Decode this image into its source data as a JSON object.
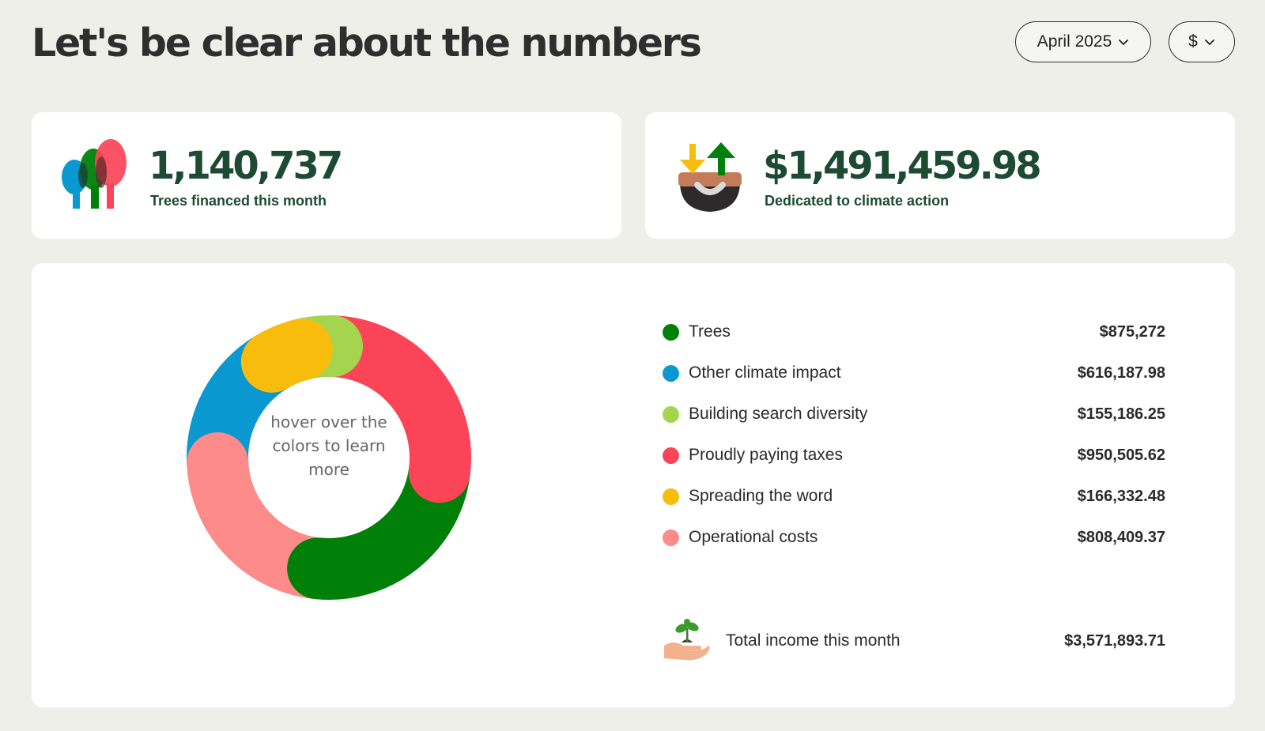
{
  "header": {
    "title": "Let's be clear about the numbers",
    "month_label": "April 2025",
    "currency_label": "$"
  },
  "stats": {
    "trees": {
      "value": "1,140,737",
      "label": "Trees financed this month",
      "icon": "trees-icon"
    },
    "climate": {
      "value": "$1,491,459.98",
      "label": "Dedicated to climate action",
      "icon": "climate-action-icon"
    }
  },
  "breakdown": {
    "center_text": "hover over the colors to learn more",
    "total": {
      "label": "Total income this month",
      "value": "$3,571,893.71",
      "icon": "seedling-hand-icon"
    }
  },
  "chart_data": {
    "type": "pie",
    "style": "donut",
    "categories": [
      "Trees",
      "Other climate impact",
      "Building search diversity",
      "Proudly paying taxes",
      "Spreading the word",
      "Operational costs"
    ],
    "values": [
      875272,
      616187.98,
      155186.25,
      950505.62,
      166332.48,
      808409.37
    ],
    "value_labels": [
      "$875,272",
      "$616,187.98",
      "$155,186.25",
      "$950,505.62",
      "$166,332.48",
      "$808,409.37"
    ],
    "colors": [
      "#008009",
      "#0a98d0",
      "#a5d54f",
      "#fb4458",
      "#f8bc0d",
      "#fd8b89"
    ],
    "legend_placement": "right"
  }
}
